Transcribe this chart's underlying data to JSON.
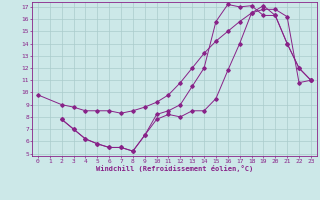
{
  "xlabel": "Windchill (Refroidissement éolien,°C)",
  "bg_color": "#cce8e8",
  "line_color": "#882288",
  "grid_color": "#aacccc",
  "xlim": [
    -0.5,
    23.5
  ],
  "ylim": [
    4.8,
    17.4
  ],
  "xticks": [
    0,
    1,
    2,
    3,
    4,
    5,
    6,
    7,
    8,
    9,
    10,
    11,
    12,
    13,
    14,
    15,
    16,
    17,
    18,
    19,
    20,
    21,
    22,
    23
  ],
  "yticks": [
    5,
    6,
    7,
    8,
    9,
    10,
    11,
    12,
    13,
    14,
    15,
    16,
    17
  ],
  "line1_x": [
    0,
    2,
    3,
    4,
    5,
    6,
    7,
    8,
    9,
    10,
    11,
    12,
    13,
    14,
    15,
    16,
    17,
    18,
    19,
    20,
    21,
    22,
    23
  ],
  "line1_y": [
    9.8,
    9.0,
    8.8,
    8.5,
    8.5,
    8.5,
    8.3,
    8.5,
    8.8,
    9.2,
    9.8,
    10.8,
    12.0,
    13.2,
    14.2,
    15.0,
    15.8,
    16.5,
    16.8,
    16.8,
    16.2,
    10.8,
    11.0
  ],
  "line2_x": [
    2,
    3,
    4,
    5,
    6,
    7,
    8,
    9,
    10,
    11,
    12,
    13,
    14,
    15,
    16,
    17,
    18,
    19,
    20,
    21,
    22,
    23
  ],
  "line2_y": [
    7.8,
    7.0,
    6.2,
    5.8,
    5.5,
    5.5,
    5.2,
    6.5,
    7.8,
    8.2,
    8.0,
    8.5,
    8.5,
    9.5,
    11.8,
    14.0,
    16.5,
    17.1,
    16.3,
    14.0,
    12.0,
    11.0
  ],
  "line3_x": [
    2,
    3,
    4,
    5,
    6,
    7,
    8,
    9,
    10,
    11,
    12,
    13,
    14,
    15,
    16,
    17,
    18,
    19,
    20,
    21,
    22,
    23
  ],
  "line3_y": [
    7.8,
    7.0,
    6.2,
    5.8,
    5.5,
    5.5,
    5.2,
    6.5,
    8.2,
    8.5,
    9.0,
    10.5,
    12.0,
    15.8,
    17.2,
    17.0,
    17.1,
    16.3,
    16.3,
    14.0,
    12.0,
    11.0
  ]
}
